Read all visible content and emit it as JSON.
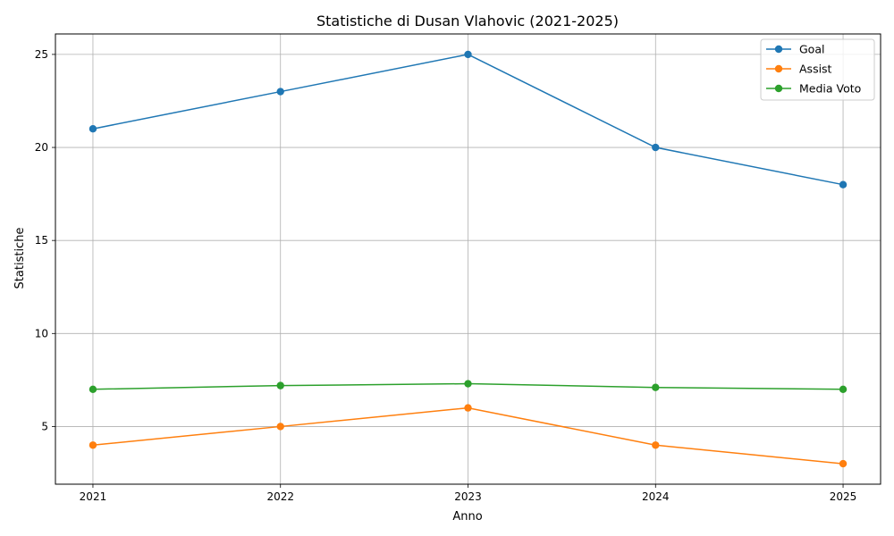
{
  "chart_data": {
    "type": "line",
    "title": "Statistiche di Dusan Vlahovic (2021-2025)",
    "xlabel": "Anno",
    "ylabel": "Statistiche",
    "x": [
      2021,
      2022,
      2023,
      2024,
      2025
    ],
    "x_tick_labels": [
      "2021",
      "2022",
      "2023",
      "2024",
      "2025"
    ],
    "y_ticks": [
      5,
      10,
      15,
      20,
      25
    ],
    "y_tick_labels": [
      "5",
      "10",
      "15",
      "20",
      "25"
    ],
    "xlim": [
      2020.8,
      2025.2
    ],
    "ylim": [
      1.9,
      26.1
    ],
    "grid": true,
    "legend_position": "top-right",
    "series": [
      {
        "name": "Goal",
        "color": "#1f77b4",
        "values": [
          21,
          23,
          25,
          20,
          18
        ]
      },
      {
        "name": "Assist",
        "color": "#ff7f0e",
        "values": [
          4,
          5,
          6,
          4,
          3
        ]
      },
      {
        "name": "Media Voto",
        "color": "#2ca02c",
        "values": [
          7.0,
          7.2,
          7.3,
          7.1,
          7.0
        ]
      }
    ]
  }
}
